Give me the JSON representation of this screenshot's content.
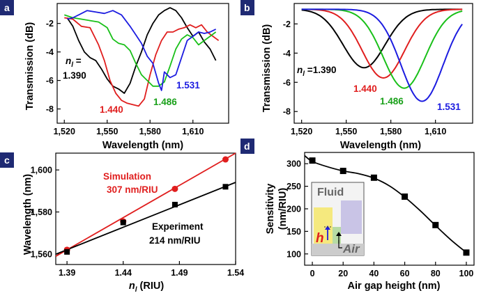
{
  "figure": {
    "panel_labels": [
      "a",
      "b",
      "c",
      "d"
    ],
    "tag_color": "#1f2a73"
  },
  "chart_data": [
    {
      "id": "a",
      "type": "line",
      "title": "",
      "xlabel": "Wavelength (nm)",
      "ylabel": "Transmission (dB)",
      "xlim": [
        1515,
        1635
      ],
      "ylim": [
        -9,
        -0.6
      ],
      "xticks": [
        1520,
        1550,
        1580,
        1610
      ],
      "xtick_labels": [
        "1,520",
        "1,550",
        "1,580",
        "1,610"
      ],
      "yticks": [
        -2,
        -4,
        -6,
        -8
      ],
      "ytick_labels": [
        "-2",
        "-4",
        "-6",
        "-8"
      ],
      "annotation_lead": "n",
      "annotation_sub": "l",
      "annotation_eq": "=",
      "series": [
        {
          "name": "1.390",
          "color": "#000000",
          "x": [
            1522,
            1526,
            1530,
            1534,
            1538,
            1542,
            1546,
            1550,
            1554,
            1558,
            1562,
            1566,
            1570,
            1574,
            1578,
            1582,
            1586,
            1590,
            1594,
            1598,
            1602,
            1606,
            1610,
            1614,
            1618,
            1622,
            1626
          ],
          "y": [
            -1.6,
            -2.2,
            -3.2,
            -4.0,
            -4.4,
            -4.6,
            -5.2,
            -5.9,
            -6.4,
            -6.6,
            -6.9,
            -6.2,
            -5.0,
            -4.0,
            -2.8,
            -2.0,
            -1.4,
            -1.1,
            -0.9,
            -1.1,
            -1.6,
            -2.3,
            -2.9,
            -2.6,
            -3.3,
            -3.8,
            -4.6
          ]
        },
        {
          "name": "1.440",
          "color": "#e01e1e",
          "x": [
            1520,
            1526,
            1532,
            1538,
            1544,
            1548,
            1552,
            1556,
            1560,
            1564,
            1568,
            1572,
            1576,
            1580,
            1584,
            1588,
            1592,
            1596,
            1600,
            1604,
            1608,
            1612,
            1616,
            1620,
            1624,
            1628
          ],
          "y": [
            -1.6,
            -1.7,
            -2.2,
            -2.3,
            -3.5,
            -4.6,
            -6.0,
            -6.9,
            -7.4,
            -7.6,
            -7.7,
            -7.8,
            -7.3,
            -5.6,
            -4.2,
            -3.2,
            -2.6,
            -2.6,
            -2.4,
            -2.3,
            -2.1,
            -2.3,
            -2.1,
            -2.6,
            -2.9,
            -3.2
          ]
        },
        {
          "name": "1.486",
          "color": "#19c019",
          "x": [
            1520,
            1526,
            1532,
            1538,
            1544,
            1550,
            1554,
            1558,
            1562,
            1566,
            1570,
            1574,
            1578,
            1582,
            1586,
            1590,
            1594,
            1598,
            1602,
            1606,
            1610,
            1614,
            1618,
            1622,
            1626
          ],
          "y": [
            -1.4,
            -1.6,
            -1.7,
            -1.8,
            -1.9,
            -2.3,
            -3.1,
            -3.4,
            -3.5,
            -3.9,
            -4.8,
            -5.6,
            -6.0,
            -6.4,
            -6.4,
            -6.1,
            -5.0,
            -3.8,
            -3.1,
            -2.8,
            -3.0,
            -3.5,
            -3.2,
            -2.9,
            -2.6
          ]
        },
        {
          "name": "1.531",
          "color": "#1c1ce0",
          "x": [
            1522,
            1526,
            1530,
            1536,
            1542,
            1548,
            1554,
            1560,
            1566,
            1570,
            1574,
            1578,
            1582,
            1586,
            1588,
            1590,
            1594,
            1598,
            1602,
            1606,
            1610,
            1614,
            1618,
            1622,
            1626
          ],
          "y": [
            -1.7,
            -1.6,
            -1.4,
            -1.1,
            -1.2,
            -1.3,
            -1.1,
            -1.4,
            -2.2,
            -2.8,
            -3.4,
            -4.3,
            -4.8,
            -6.2,
            -6.7,
            -5.4,
            -5.8,
            -5.6,
            -4.4,
            -3.2,
            -2.9,
            -2.6,
            -2.7,
            -2.6,
            -2.4
          ]
        }
      ],
      "labels": [
        {
          "text": "1.390",
          "color": "#000000"
        },
        {
          "text": "1.440",
          "color": "#e01e1e"
        },
        {
          "text": "1.486",
          "color": "#19a019"
        },
        {
          "text": "1.531",
          "color": "#1c1ce0"
        }
      ]
    },
    {
      "id": "b",
      "type": "line",
      "title": "",
      "xlabel": "Wavelength (nm)",
      "ylabel": "Transmission (dB)",
      "xlim": [
        1515,
        1635
      ],
      "ylim": [
        -8.8,
        -0.6
      ],
      "xticks": [
        1520,
        1550,
        1580,
        1610
      ],
      "xtick_labels": [
        "1,520",
        "1,550",
        "1,580",
        "1,610"
      ],
      "yticks": [
        -2,
        -4,
        -6,
        -8
      ],
      "ytick_labels": [
        "-2",
        "-4",
        "-6",
        "-8"
      ],
      "annotation_lead": "n",
      "annotation_sub": "l",
      "annotation_eq": "=",
      "series": [
        {
          "name": "1.390",
          "color": "#000000",
          "min_x": 1562,
          "min_y": -5.0,
          "width": 20,
          "base": -1.0
        },
        {
          "name": "1.440",
          "color": "#e01e1e",
          "min_x": 1575,
          "min_y": -5.7,
          "width": 20,
          "base": -1.0
        },
        {
          "name": "1.486",
          "color": "#19c019",
          "min_x": 1589,
          "min_y": -6.4,
          "width": 20,
          "base": -1.0
        },
        {
          "name": "1.531",
          "color": "#1c1ce0",
          "min_x": 1601,
          "min_y": -7.3,
          "width": 20,
          "base": -1.0
        }
      ],
      "labels": [
        {
          "text": "1.390",
          "color": "#000000"
        },
        {
          "text": "1.440",
          "color": "#e01e1e"
        },
        {
          "text": "1.486",
          "color": "#19a019"
        },
        {
          "text": "1.531",
          "color": "#1c1ce0"
        }
      ]
    },
    {
      "id": "c",
      "type": "scatter",
      "title": "",
      "xlabel_lead": "n",
      "xlabel_sub": "l",
      "xlabel_rest": " (RIU)",
      "ylabel": "Wavelength (nm)",
      "xlim": [
        1.38,
        1.54
      ],
      "ylim": [
        1555,
        1608
      ],
      "xticks": [
        1.39,
        1.44,
        1.49,
        1.54
      ],
      "xtick_labels": [
        "1.39",
        "1.44",
        "1.49",
        "1.54"
      ],
      "yticks": [
        1560,
        1580,
        1600
      ],
      "ytick_labels": [
        "1,560",
        "1,580",
        "1,600"
      ],
      "series": [
        {
          "name": "Simulation",
          "slope_label": "307 nm/RIU",
          "color": "#e01e1e",
          "marker": "circle",
          "x": [
            1.39,
            1.44,
            1.486,
            1.531
          ],
          "y": [
            1562,
            1575.5,
            1591,
            1605
          ],
          "fit_x": [
            1.38,
            1.54
          ],
          "fit_y": [
            1558.9,
            1608.0
          ]
        },
        {
          "name": "Experiment",
          "slope_label": "214 nm/RIU",
          "color": "#000000",
          "marker": "square",
          "x": [
            1.39,
            1.44,
            1.486,
            1.531
          ],
          "y": [
            1561,
            1575,
            1583.5,
            1592
          ],
          "fit_x": [
            1.38,
            1.54
          ],
          "fit_y": [
            1559.9,
            1594.1
          ]
        }
      ]
    },
    {
      "id": "d",
      "type": "line",
      "title": "",
      "xlabel": "Air gap height (nm)",
      "ylabel_line1": "Sensitivity",
      "ylabel_line2": "(nm/RIU)",
      "xlim": [
        -5,
        105
      ],
      "ylim": [
        75,
        325
      ],
      "xticks": [
        0,
        20,
        40,
        60,
        80,
        100
      ],
      "xtick_labels": [
        "0",
        "20",
        "40",
        "60",
        "80",
        "100"
      ],
      "yticks": [
        100,
        150,
        200,
        250,
        300
      ],
      "ytick_labels": [
        "100",
        "150",
        "200",
        "250",
        "300"
      ],
      "series": [
        {
          "name": "Sensitivity",
          "color": "#000000",
          "marker": "square",
          "x": [
            0,
            20,
            40,
            60,
            80,
            100
          ],
          "y": [
            307,
            284,
            269,
            227,
            164,
            103
          ],
          "curve_x": [
            -5,
            0,
            10,
            20,
            30,
            40,
            50,
            60,
            70,
            80,
            90,
            100
          ],
          "curve_y": [
            318,
            305,
            293,
            284,
            278,
            268,
            251,
            226,
            196,
            163,
            131,
            103
          ]
        }
      ],
      "inset": {
        "fluid_label": "Fluid",
        "height_symbol": "h",
        "air_label": "Air",
        "fluid_color": "#f3f3f3",
        "yellow": "#f5e97e",
        "green": "#b7dba4",
        "purple": "#c9c4e6",
        "base_color": "#cccccc"
      }
    }
  ]
}
